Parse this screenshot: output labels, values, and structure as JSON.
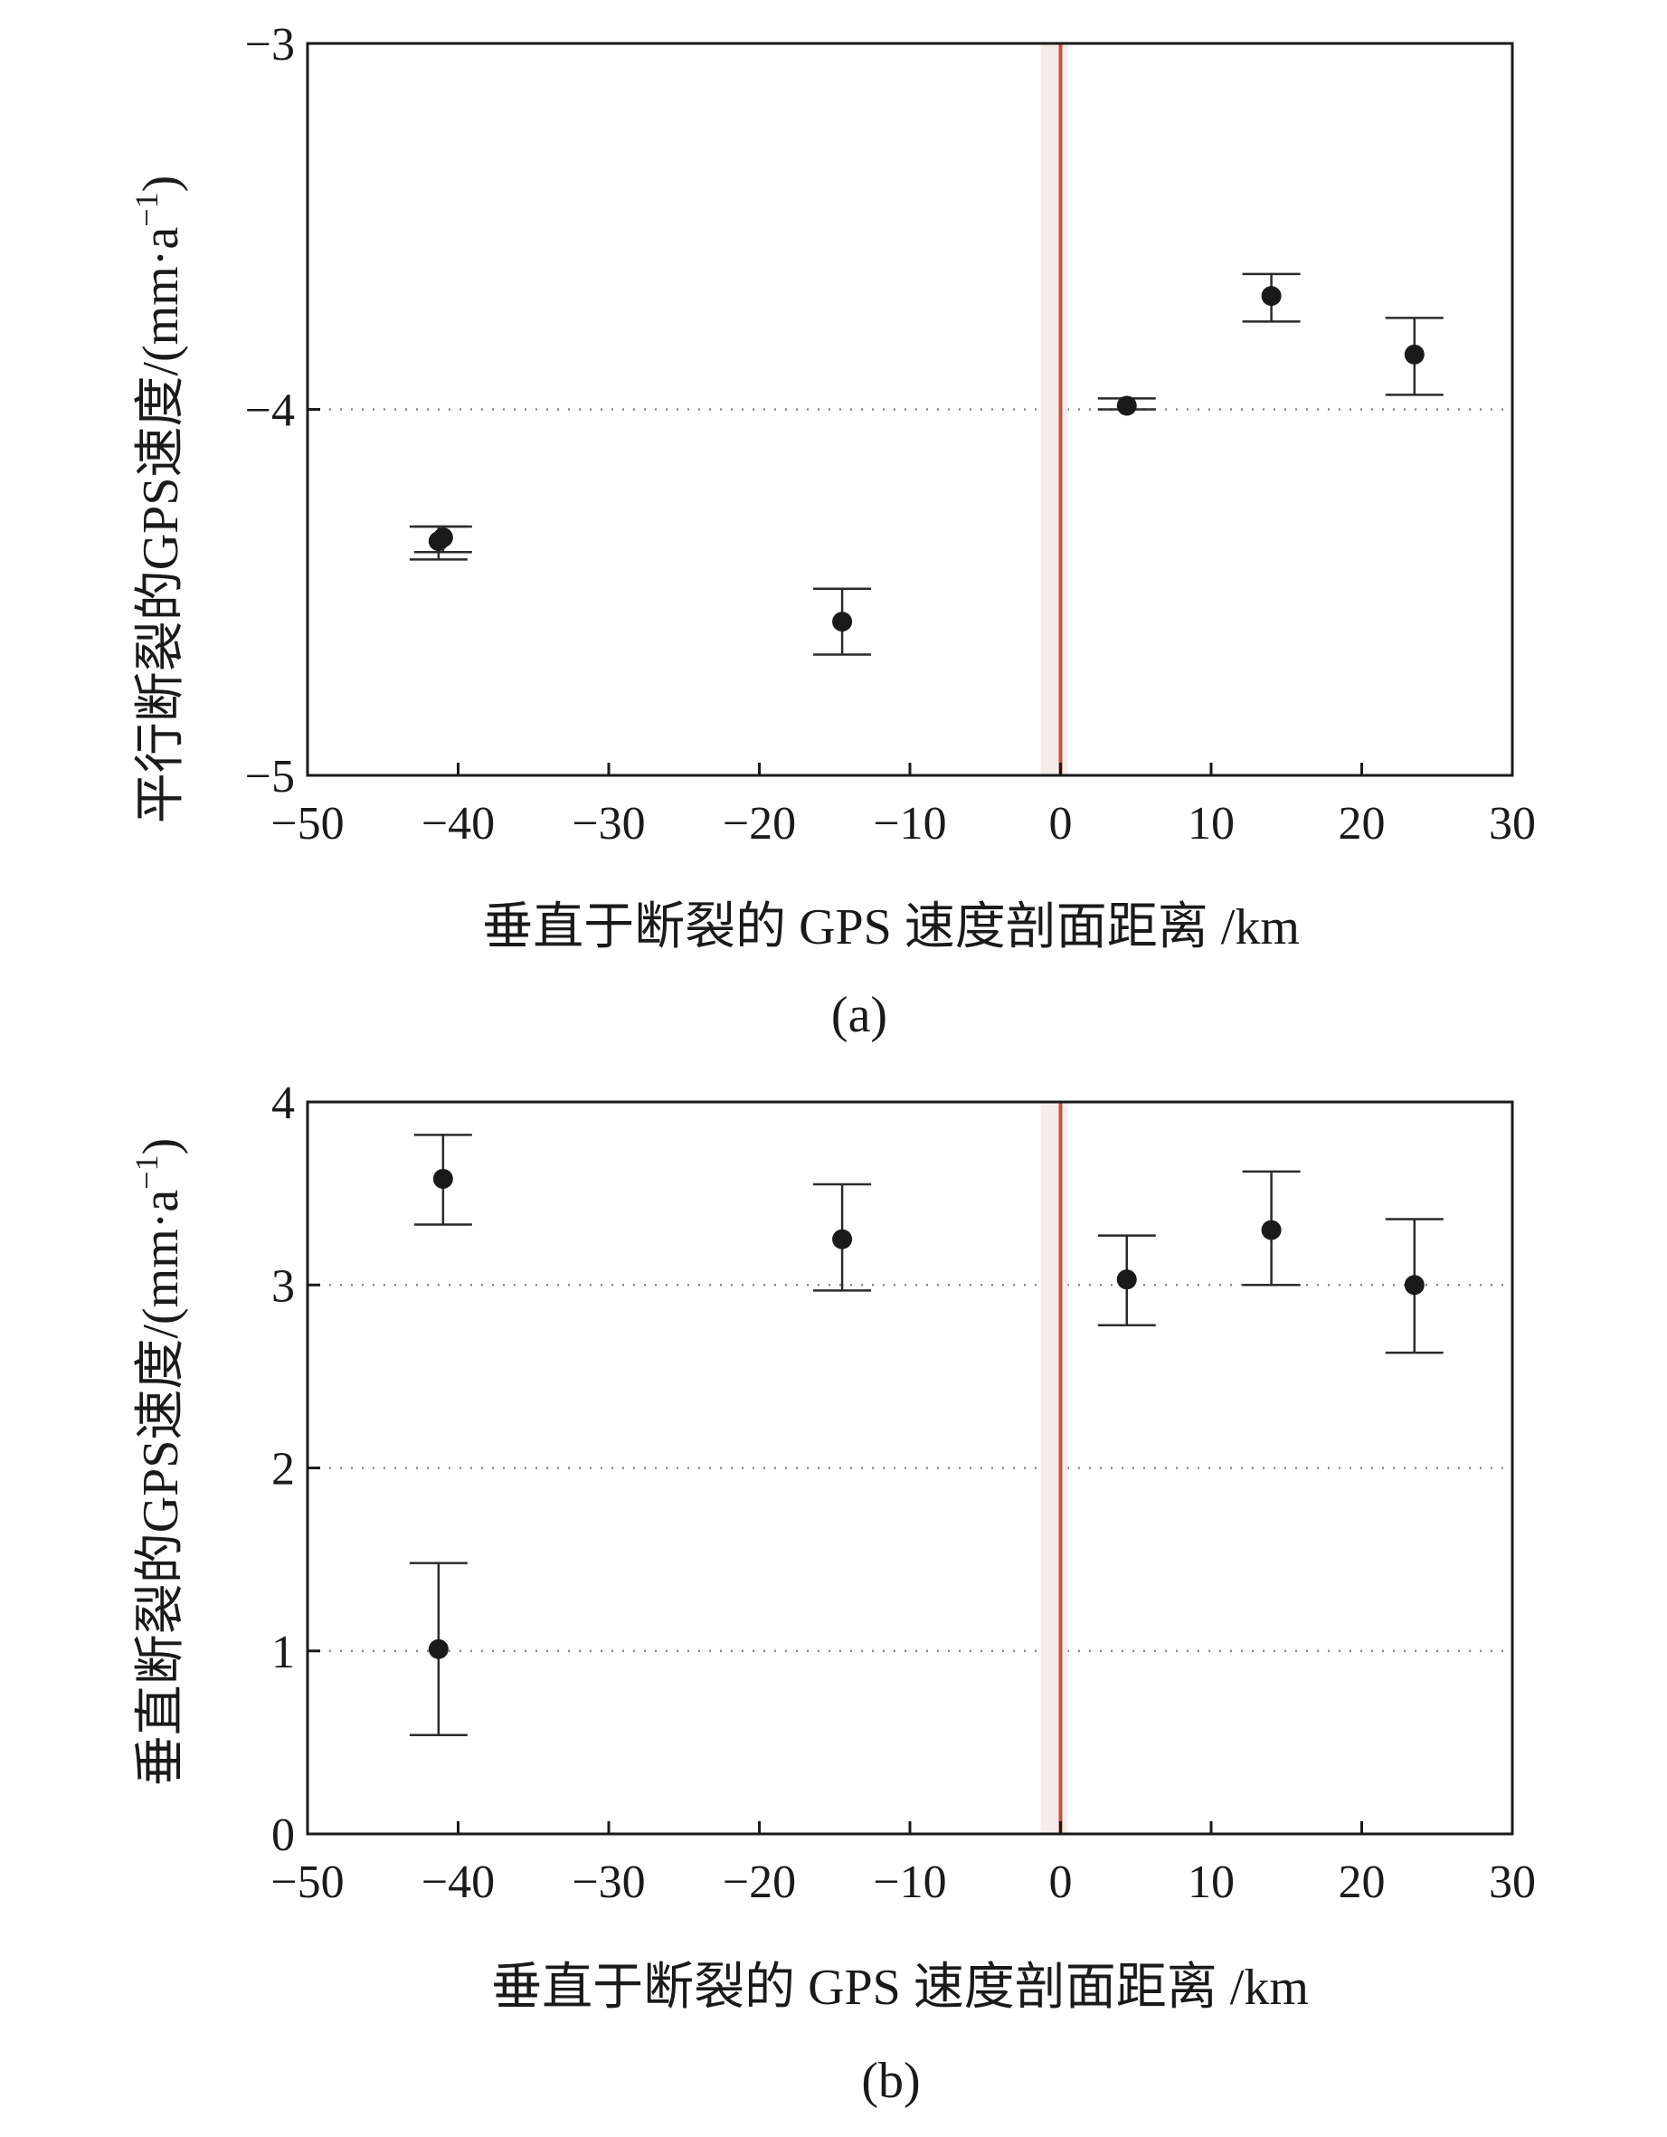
{
  "chart_data": [
    {
      "type": "scatter",
      "panel_label": "(a)",
      "xlabel": "垂直于断裂的 GPS 速度剖面距离 /km",
      "ylabel_parts": {
        "main": "平行断裂的GPS速度/(mm·a",
        "sup": "−1",
        "close": ")"
      },
      "xlim": [
        -50,
        30
      ],
      "ylim": [
        -5,
        -3
      ],
      "y_inverted": true,
      "xticks": [
        -50,
        -40,
        -30,
        -20,
        -10,
        0,
        10,
        20,
        30
      ],
      "xtick_labels": [
        "−50",
        "−40",
        "−30",
        "−20",
        "−10",
        "0",
        "10",
        "20",
        "30"
      ],
      "yticks": [
        -3,
        -4,
        -5
      ],
      "ytick_labels": [
        "−3",
        "−4",
        "−5"
      ],
      "grid_y": [
        -4
      ],
      "fault_x": 0,
      "points": [
        {
          "x": -41.3,
          "y": -4.36,
          "err_low": -4.41,
          "err_high": -4.32
        },
        {
          "x": -41.0,
          "y": -4.35,
          "err_low": -4.39,
          "err_high": -4.32
        },
        {
          "x": -14.5,
          "y": -4.58,
          "err_low": -4.67,
          "err_high": -4.49
        },
        {
          "x": 4.4,
          "y": -3.99,
          "err_low": -4.0,
          "err_high": -3.97
        },
        {
          "x": 14.0,
          "y": -3.69,
          "err_low": -3.76,
          "err_high": -3.63
        },
        {
          "x": 23.5,
          "y": -3.85,
          "err_low": -3.96,
          "err_high": -3.75
        }
      ]
    },
    {
      "type": "scatter",
      "panel_label": "(b)",
      "xlabel": "垂直于断裂的 GPS 速度剖面距离 /km",
      "ylabel_parts": {
        "main": "垂直断裂的GPS速度/(mm·a",
        "sup": "−1",
        "close": ")"
      },
      "xlim": [
        -50,
        30
      ],
      "ylim": [
        0,
        4
      ],
      "y_inverted": false,
      "xticks": [
        -50,
        -40,
        -30,
        -20,
        -10,
        0,
        10,
        20,
        30
      ],
      "xtick_labels": [
        "−50",
        "−40",
        "−30",
        "−20",
        "−10",
        "0",
        "10",
        "20",
        "30"
      ],
      "yticks": [
        0,
        1,
        2,
        3,
        4
      ],
      "ytick_labels": [
        "0",
        "1",
        "2",
        "3",
        "4"
      ],
      "grid_y": [
        1,
        2,
        3
      ],
      "fault_x": 0,
      "points": [
        {
          "x": -41.0,
          "y": 3.58,
          "err_low": 3.33,
          "err_high": 3.82
        },
        {
          "x": -41.3,
          "y": 1.01,
          "err_low": 0.54,
          "err_high": 1.48
        },
        {
          "x": -14.5,
          "y": 3.25,
          "err_low": 2.97,
          "err_high": 3.55
        },
        {
          "x": 4.4,
          "y": 3.03,
          "err_low": 2.78,
          "err_high": 3.27
        },
        {
          "x": 14.0,
          "y": 3.3,
          "err_low": 3.0,
          "err_high": 3.62
        },
        {
          "x": 23.5,
          "y": 3.0,
          "err_low": 2.63,
          "err_high": 3.36
        }
      ]
    }
  ]
}
